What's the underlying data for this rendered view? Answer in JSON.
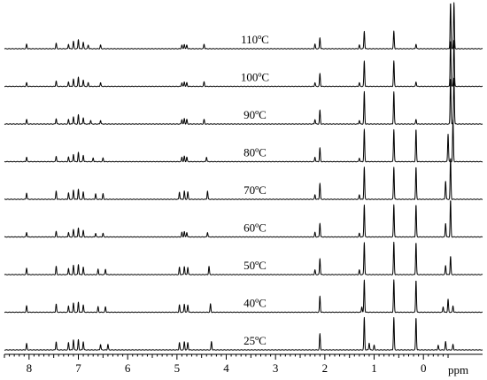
{
  "chart_data": {
    "type": "line",
    "title": "",
    "xlabel": "ppm",
    "ylabel": "",
    "x_range": [
      8.5,
      -1.2
    ],
    "x_reversed": true,
    "x_ticks": [
      8,
      7,
      6,
      5,
      4,
      3,
      2,
      1,
      0
    ],
    "x_tick_labels": [
      "8",
      "7",
      "6",
      "5",
      "4",
      "3",
      "2",
      "1",
      "0"
    ],
    "series": [
      {
        "name": "110ºC",
        "temp": 110,
        "label": "110",
        "unit": "ºC",
        "peaks": [
          [
            8.05,
            10
          ],
          [
            7.45,
            12
          ],
          [
            7.2,
            10
          ],
          [
            7.1,
            16
          ],
          [
            7.0,
            20
          ],
          [
            6.9,
            14
          ],
          [
            6.8,
            8
          ],
          [
            6.55,
            8
          ],
          [
            4.9,
            8
          ],
          [
            4.85,
            10
          ],
          [
            4.8,
            8
          ],
          [
            4.45,
            10
          ],
          [
            2.2,
            10
          ],
          [
            2.1,
            24
          ],
          [
            1.3,
            8
          ],
          [
            1.2,
            38
          ],
          [
            0.6,
            38
          ],
          [
            0.15,
            10
          ],
          [
            -0.55,
            100
          ],
          [
            -0.62,
            100
          ]
        ]
      },
      {
        "name": "100ºC",
        "temp": 100,
        "label": "100",
        "unit": "ºC",
        "peaks": [
          [
            8.05,
            8
          ],
          [
            7.45,
            12
          ],
          [
            7.2,
            10
          ],
          [
            7.1,
            16
          ],
          [
            7.0,
            20
          ],
          [
            6.9,
            14
          ],
          [
            6.8,
            8
          ],
          [
            6.55,
            8
          ],
          [
            4.9,
            8
          ],
          [
            4.85,
            10
          ],
          [
            4.8,
            8
          ],
          [
            4.45,
            10
          ],
          [
            2.2,
            8
          ],
          [
            2.1,
            28
          ],
          [
            1.3,
            8
          ],
          [
            1.2,
            55
          ],
          [
            0.6,
            55
          ],
          [
            0.15,
            10
          ],
          [
            -0.55,
            100
          ],
          [
            -0.62,
            100
          ]
        ]
      },
      {
        "name": "90ºC",
        "temp": 90,
        "label": "90",
        "unit": "ºC",
        "peaks": [
          [
            8.05,
            10
          ],
          [
            7.45,
            12
          ],
          [
            7.2,
            10
          ],
          [
            7.1,
            16
          ],
          [
            7.0,
            20
          ],
          [
            6.9,
            14
          ],
          [
            6.75,
            8
          ],
          [
            6.55,
            8
          ],
          [
            4.9,
            10
          ],
          [
            4.85,
            12
          ],
          [
            4.8,
            10
          ],
          [
            4.45,
            10
          ],
          [
            2.2,
            10
          ],
          [
            2.1,
            30
          ],
          [
            1.3,
            8
          ],
          [
            1.2,
            70
          ],
          [
            0.6,
            70
          ],
          [
            0.15,
            10
          ],
          [
            -0.55,
            100
          ],
          [
            -0.62,
            100
          ]
        ]
      },
      {
        "name": "80ºC",
        "temp": 80,
        "label": "80",
        "unit": "ºC",
        "peaks": [
          [
            8.05,
            10
          ],
          [
            7.45,
            12
          ],
          [
            7.2,
            10
          ],
          [
            7.1,
            16
          ],
          [
            7.0,
            20
          ],
          [
            6.9,
            14
          ],
          [
            6.7,
            8
          ],
          [
            6.5,
            8
          ],
          [
            4.9,
            10
          ],
          [
            4.85,
            12
          ],
          [
            4.8,
            10
          ],
          [
            4.4,
            10
          ],
          [
            2.2,
            10
          ],
          [
            2.1,
            30
          ],
          [
            1.3,
            8
          ],
          [
            1.2,
            70
          ],
          [
            0.6,
            70
          ],
          [
            0.15,
            70
          ],
          [
            -0.5,
            60
          ],
          [
            -0.6,
            90
          ]
        ]
      },
      {
        "name": "70ºC",
        "temp": 70,
        "label": "70",
        "unit": "ºC",
        "peaks": [
          [
            8.05,
            14
          ],
          [
            7.45,
            18
          ],
          [
            7.2,
            14
          ],
          [
            7.1,
            20
          ],
          [
            7.0,
            22
          ],
          [
            6.9,
            16
          ],
          [
            6.65,
            12
          ],
          [
            6.5,
            12
          ],
          [
            4.95,
            16
          ],
          [
            4.85,
            18
          ],
          [
            4.78,
            16
          ],
          [
            4.38,
            18
          ],
          [
            2.2,
            10
          ],
          [
            2.1,
            35
          ],
          [
            1.3,
            10
          ],
          [
            1.2,
            70
          ],
          [
            0.6,
            70
          ],
          [
            0.15,
            70
          ],
          [
            -0.45,
            40
          ],
          [
            -0.55,
            90
          ]
        ]
      },
      {
        "name": "60ºC",
        "temp": 60,
        "label": "60",
        "unit": "ºC",
        "peaks": [
          [
            8.05,
            10
          ],
          [
            7.45,
            12
          ],
          [
            7.2,
            10
          ],
          [
            7.1,
            16
          ],
          [
            7.0,
            20
          ],
          [
            6.9,
            14
          ],
          [
            6.65,
            8
          ],
          [
            6.5,
            8
          ],
          [
            4.9,
            10
          ],
          [
            4.85,
            12
          ],
          [
            4.8,
            10
          ],
          [
            4.38,
            10
          ],
          [
            2.2,
            10
          ],
          [
            2.1,
            30
          ],
          [
            1.3,
            8
          ],
          [
            1.2,
            70
          ],
          [
            0.6,
            70
          ],
          [
            0.15,
            70
          ],
          [
            -0.45,
            30
          ],
          [
            -0.55,
            80
          ]
        ]
      },
      {
        "name": "50ºC",
        "temp": 50,
        "label": "50",
        "unit": "ºC",
        "peaks": [
          [
            8.05,
            14
          ],
          [
            7.45,
            18
          ],
          [
            7.2,
            14
          ],
          [
            7.1,
            20
          ],
          [
            7.0,
            22
          ],
          [
            6.9,
            16
          ],
          [
            6.6,
            12
          ],
          [
            6.45,
            12
          ],
          [
            4.95,
            16
          ],
          [
            4.85,
            18
          ],
          [
            4.78,
            16
          ],
          [
            4.35,
            18
          ],
          [
            2.2,
            10
          ],
          [
            2.1,
            35
          ],
          [
            1.3,
            10
          ],
          [
            1.2,
            70
          ],
          [
            0.6,
            70
          ],
          [
            0.15,
            70
          ],
          [
            -0.45,
            20
          ],
          [
            -0.55,
            40
          ]
        ]
      },
      {
        "name": "40ºC",
        "temp": 40,
        "label": "40",
        "unit": "ºC",
        "peaks": [
          [
            8.05,
            14
          ],
          [
            7.45,
            18
          ],
          [
            7.2,
            14
          ],
          [
            7.1,
            20
          ],
          [
            7.0,
            22
          ],
          [
            6.9,
            16
          ],
          [
            6.6,
            12
          ],
          [
            6.45,
            12
          ],
          [
            4.95,
            16
          ],
          [
            4.85,
            18
          ],
          [
            4.78,
            16
          ],
          [
            4.32,
            18
          ],
          [
            2.1,
            35
          ],
          [
            1.25,
            12
          ],
          [
            1.2,
            70
          ],
          [
            0.6,
            70
          ],
          [
            0.15,
            70
          ],
          [
            -0.4,
            12
          ],
          [
            -0.5,
            28
          ],
          [
            -0.6,
            14
          ]
        ]
      },
      {
        "name": "25ºC",
        "temp": 25,
        "label": "25",
        "unit": "ºC",
        "peaks": [
          [
            8.05,
            14
          ],
          [
            7.45,
            18
          ],
          [
            7.2,
            16
          ],
          [
            7.1,
            22
          ],
          [
            7.0,
            22
          ],
          [
            6.9,
            18
          ],
          [
            6.55,
            12
          ],
          [
            6.4,
            12
          ],
          [
            4.95,
            16
          ],
          [
            4.85,
            18
          ],
          [
            4.78,
            16
          ],
          [
            4.3,
            18
          ],
          [
            2.1,
            35
          ],
          [
            1.2,
            70
          ],
          [
            1.1,
            15
          ],
          [
            1.0,
            10
          ],
          [
            0.6,
            70
          ],
          [
            0.15,
            70
          ],
          [
            -0.3,
            10
          ],
          [
            -0.45,
            18
          ],
          [
            -0.6,
            12
          ]
        ]
      }
    ]
  }
}
